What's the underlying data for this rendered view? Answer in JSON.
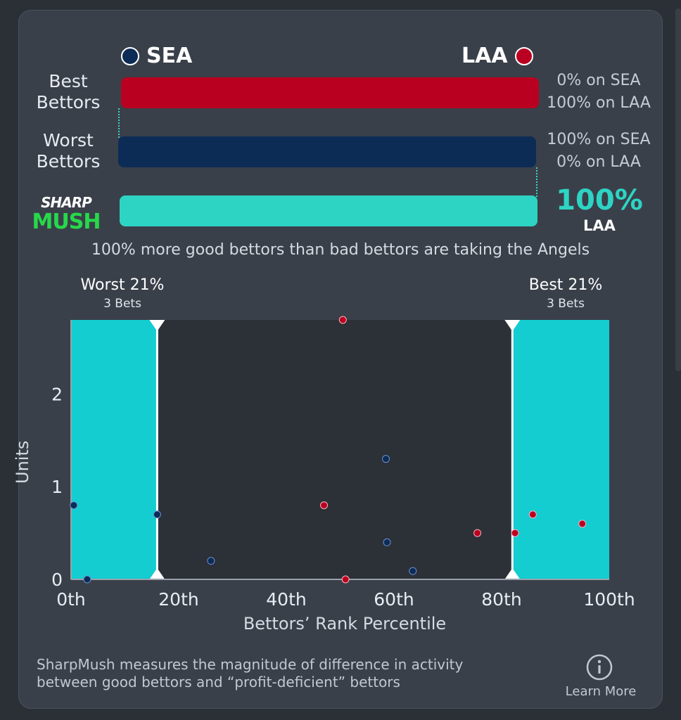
{
  "teams": {
    "away": {
      "abbr": "SEA",
      "color": "#0c2c56"
    },
    "home": {
      "abbr": "LAA",
      "color": "#ba0021"
    }
  },
  "rows": {
    "best": {
      "label_1": "Best",
      "label_2": "Bettors",
      "line_1": "0% on SEA",
      "line_2": "100% on LAA"
    },
    "worst": {
      "label_1": "Worst",
      "label_2": "Bettors",
      "line_1": "100% on SEA",
      "line_2": "0% on LAA"
    }
  },
  "sharpmush": {
    "logo_top": "SHARP",
    "logo_bottom": "MUSH",
    "value": "100%",
    "team": "LAA",
    "color": "#2dd4c3"
  },
  "summary": "100% more good bettors than bad bettors are taking the Angels",
  "brackets": {
    "worst": {
      "title": "Worst 21%",
      "sub": "3 Bets"
    },
    "best": {
      "title": "Best 21%",
      "sub": "3 Bets"
    }
  },
  "chart_data": {
    "type": "scatter",
    "xlabel": "Bettors’ Rank Percentile",
    "ylabel": "Units",
    "xlim": [
      0,
      100
    ],
    "ylim": [
      0,
      2.8
    ],
    "x_ticks": [
      "0th",
      "20th",
      "40th",
      "60th",
      "80th",
      "100th"
    ],
    "x_tick_values": [
      0,
      20,
      40,
      60,
      80,
      100
    ],
    "y_ticks": [
      "0",
      "1",
      "2"
    ],
    "y_tick_values": [
      0,
      1,
      2
    ],
    "highlight_bands": [
      {
        "name": "Worst 21%",
        "from": 0,
        "to": 16
      },
      {
        "name": "Best 21%",
        "from": 82,
        "to": 100
      }
    ],
    "series": [
      {
        "name": "SEA",
        "color": "#0c2c56",
        "points": [
          {
            "x": 0.5,
            "y": 0.8
          },
          {
            "x": 3,
            "y": 0.0
          },
          {
            "x": 16,
            "y": 0.7
          },
          {
            "x": 26,
            "y": 0.2
          },
          {
            "x": 58.5,
            "y": 1.3
          },
          {
            "x": 58.7,
            "y": 0.4
          },
          {
            "x": 63.5,
            "y": 0.09
          }
        ]
      },
      {
        "name": "LAA",
        "color": "#ba0021",
        "points": [
          {
            "x": 50.5,
            "y": 2.8
          },
          {
            "x": 47,
            "y": 0.8
          },
          {
            "x": 51,
            "y": 0.0
          },
          {
            "x": 75.5,
            "y": 0.5
          },
          {
            "x": 82.5,
            "y": 0.5
          },
          {
            "x": 85.8,
            "y": 0.7
          },
          {
            "x": 95,
            "y": 0.6
          }
        ]
      }
    ]
  },
  "footer": {
    "text_1": "SharpMush measures the magnitude of difference in activity",
    "text_2": "between good bettors and “profit-deficient” bettors",
    "learn_more": "Learn More"
  }
}
